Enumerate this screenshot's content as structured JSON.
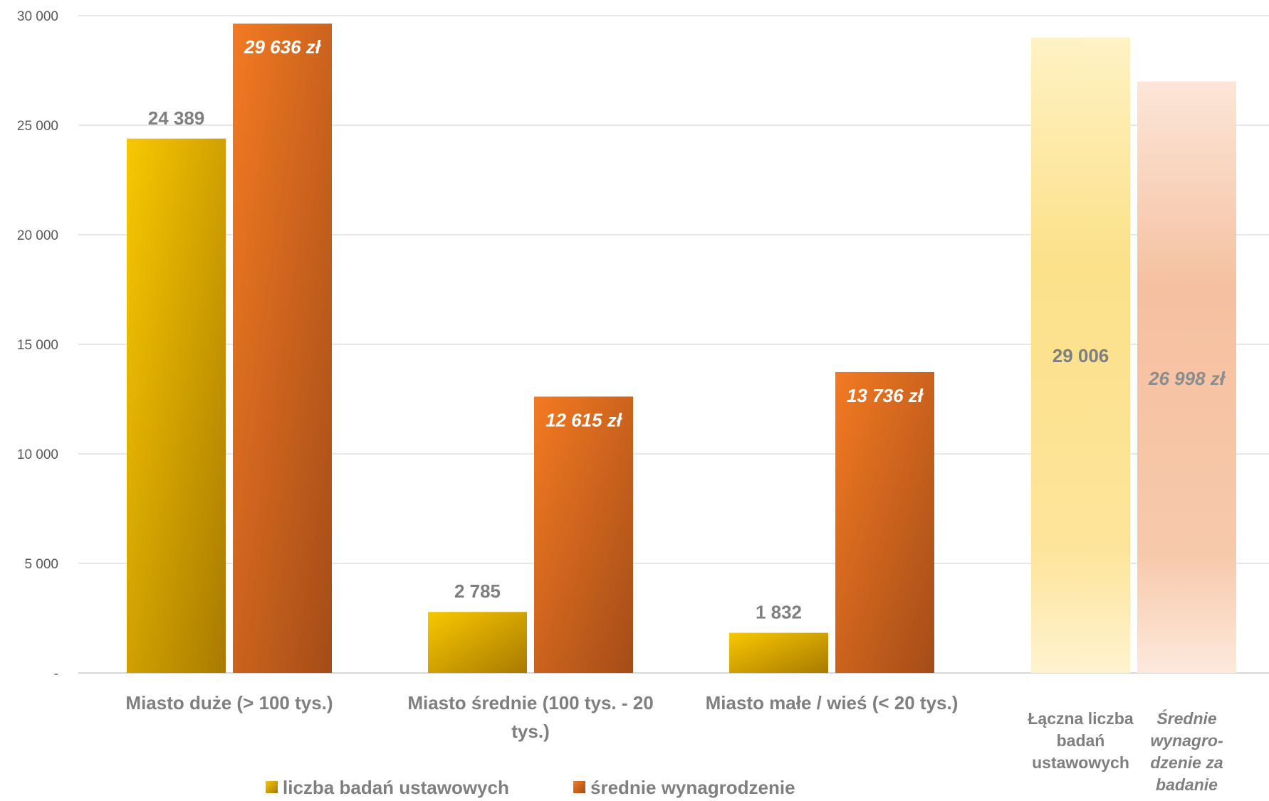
{
  "chart_data": {
    "type": "bar",
    "ylim": [
      0,
      30000
    ],
    "yticks": [
      {
        "value": 0,
        "label": "-"
      },
      {
        "value": 5000,
        "label": "5 000"
      },
      {
        "value": 10000,
        "label": "10 000"
      },
      {
        "value": 15000,
        "label": "15 000"
      },
      {
        "value": 20000,
        "label": "20 000"
      },
      {
        "value": 25000,
        "label": "25 000"
      },
      {
        "value": 30000,
        "label": "30 000"
      }
    ],
    "grid": true,
    "legend_position": "bottom",
    "categories": [
      {
        "lines": [
          "Miasto duże (> 100 tys.)"
        ]
      },
      {
        "lines": [
          "Miasto średnie (100 tys. - 20",
          "tys.)"
        ]
      },
      {
        "lines": [
          "Miasto małe / wieś (< 20 tys.)"
        ]
      }
    ],
    "series": [
      {
        "name": "liczba badań ustawowych",
        "color": "#f2c200",
        "values": [
          24389,
          2785,
          1832
        ],
        "labels": [
          "24 389",
          "2 785",
          "1 832"
        ]
      },
      {
        "name": "średnie wynagrodzenie",
        "color": "#ed7d31",
        "values": [
          29636,
          12615,
          13736
        ],
        "labels": [
          "29 636 zł",
          "12 615 zł",
          "13 736 zł"
        ]
      }
    ],
    "summary": [
      {
        "value": 29006,
        "label": "29 006",
        "category_lines": [
          "Łączna liczba",
          "badań",
          "ustawowych"
        ]
      },
      {
        "value": 26998,
        "label": "26 998 zł",
        "category_lines": [
          "Średnie",
          "wynagro-",
          "dzenie za",
          "badanie"
        ]
      }
    ]
  }
}
